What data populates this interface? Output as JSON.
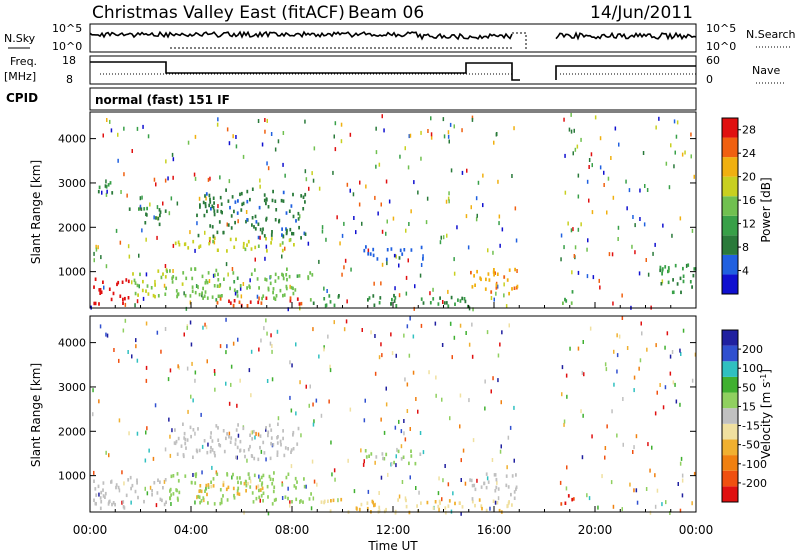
{
  "header": {
    "title": "Christmas Valley East (fitACF)",
    "beam": "Beam 06",
    "date": "14/Jun/2011"
  },
  "panels": {
    "nsky": {
      "left_label": "N.Sky",
      "right_label": "N.Search",
      "left_ticks": [
        "10^5",
        "10^0"
      ],
      "right_ticks": [
        "10^5",
        "10^0"
      ]
    },
    "freq": {
      "left_label_1": "Freq.",
      "left_label_2": "[MHz]",
      "right_label": "Nave",
      "left_ticks": [
        "18",
        "8"
      ],
      "right_ticks": [
        "60",
        "0"
      ]
    },
    "cpid": {
      "label": "CPID",
      "text": "normal (fast) 151 IF"
    }
  },
  "chart_data": [
    {
      "type": "heatmap",
      "title": "",
      "xlabel": "Time UT",
      "ylabel": "Slant Range [km]",
      "x_ticks": [
        "00:00",
        "04:00",
        "08:00",
        "12:00",
        "16:00",
        "20:00",
        "00:00"
      ],
      "xlim_hours": [
        0,
        24
      ],
      "y_ticks": [
        1000,
        2000,
        3000,
        4000
      ],
      "ylim_km": [
        180,
        4600
      ],
      "colorbar": {
        "label": "Power [dB]",
        "ticks": [
          4,
          8,
          12,
          16,
          20,
          24,
          28
        ],
        "range": [
          0,
          30
        ],
        "colors": [
          "#1010d0",
          "#2060e0",
          "#2a7a3a",
          "#38a048",
          "#70c050",
          "#c8d020",
          "#f0b010",
          "#f06010",
          "#e01010"
        ]
      },
      "regions": [
        {
          "t0": 0.1,
          "t1": 1.6,
          "r0": 300,
          "r1": 900,
          "value": 29
        },
        {
          "t0": 1.6,
          "t1": 3.0,
          "r0": 400,
          "r1": 1100,
          "value": 17
        },
        {
          "t0": 3.0,
          "t1": 8.8,
          "r0": 400,
          "r1": 1100,
          "value": 15
        },
        {
          "t0": 5.0,
          "t1": 8.5,
          "r0": 250,
          "r1": 450,
          "value": 27
        },
        {
          "t0": 3.3,
          "t1": 8.3,
          "r0": 1500,
          "r1": 1800,
          "value": 18
        },
        {
          "t0": 0.1,
          "t1": 1.0,
          "r0": 2800,
          "r1": 3100,
          "value": 10
        },
        {
          "t0": 1.5,
          "t1": 3.0,
          "r0": 2100,
          "r1": 2500,
          "value": 9
        },
        {
          "t0": 4.2,
          "t1": 8.5,
          "r0": 1800,
          "r1": 2900,
          "value": 8
        },
        {
          "t0": 10.8,
          "t1": 13.2,
          "r0": 1300,
          "r1": 1600,
          "value": 5
        },
        {
          "t0": 8.8,
          "t1": 15.0,
          "r0": 250,
          "r1": 500,
          "value": 10
        },
        {
          "t0": 15.0,
          "t1": 16.9,
          "r0": 500,
          "r1": 1100,
          "value": 22
        },
        {
          "t0": 18.6,
          "t1": 19.3,
          "r0": 300,
          "r1": 600,
          "value": 14
        },
        {
          "t0": 22.5,
          "t1": 24.0,
          "r0": 500,
          "r1": 1200,
          "value": 10
        }
      ],
      "gap_hours": [
        16.9,
        18.6
      ]
    },
    {
      "type": "heatmap",
      "title": "",
      "xlabel": "Time UT",
      "ylabel": "Slant Range [km]",
      "x_ticks": [
        "00:00",
        "04:00",
        "08:00",
        "12:00",
        "16:00",
        "20:00",
        "00:00"
      ],
      "xlim_hours": [
        0,
        24
      ],
      "y_ticks": [
        1000,
        2000,
        3000,
        4000
      ],
      "ylim_km": [
        180,
        4600
      ],
      "colorbar": {
        "label": "Velocity [m s^-1]",
        "label_main": "Velocity [m s",
        "label_exp": "-1",
        "label_end": "]",
        "ticks": [
          200,
          100,
          50,
          15,
          -15,
          -50,
          -100,
          -200
        ],
        "range": [
          -250,
          250
        ],
        "colors": [
          "#e01010",
          "#f05010",
          "#f08010",
          "#f0b030",
          "#f0e0a0",
          "#c0c0c0",
          "#90d060",
          "#40b030",
          "#30c0c0",
          "#3050d0",
          "#2020a0"
        ]
      },
      "regions": [
        {
          "t0": 0.1,
          "t1": 3.0,
          "r0": 300,
          "r1": 1000,
          "value": 0
        },
        {
          "t0": 3.0,
          "t1": 8.8,
          "r0": 400,
          "r1": 1100,
          "value": 40
        },
        {
          "t0": 3.3,
          "t1": 8.3,
          "r0": 1400,
          "r1": 2200,
          "value": 0
        },
        {
          "t0": 4.2,
          "t1": 7.0,
          "r0": 600,
          "r1": 900,
          "value": -80
        },
        {
          "t0": 8.8,
          "t1": 16.9,
          "r0": 200,
          "r1": 500,
          "value": -60
        },
        {
          "t0": 15.0,
          "t1": 16.9,
          "r0": 500,
          "r1": 1100,
          "value": 0
        },
        {
          "t0": 10.8,
          "t1": 13.2,
          "r0": 1300,
          "r1": 1600,
          "value": 30
        },
        {
          "t0": 18.6,
          "t1": 19.3,
          "r0": 300,
          "r1": 600,
          "value": -200
        }
      ],
      "gap_hours": [
        16.9,
        18.6
      ]
    }
  ]
}
